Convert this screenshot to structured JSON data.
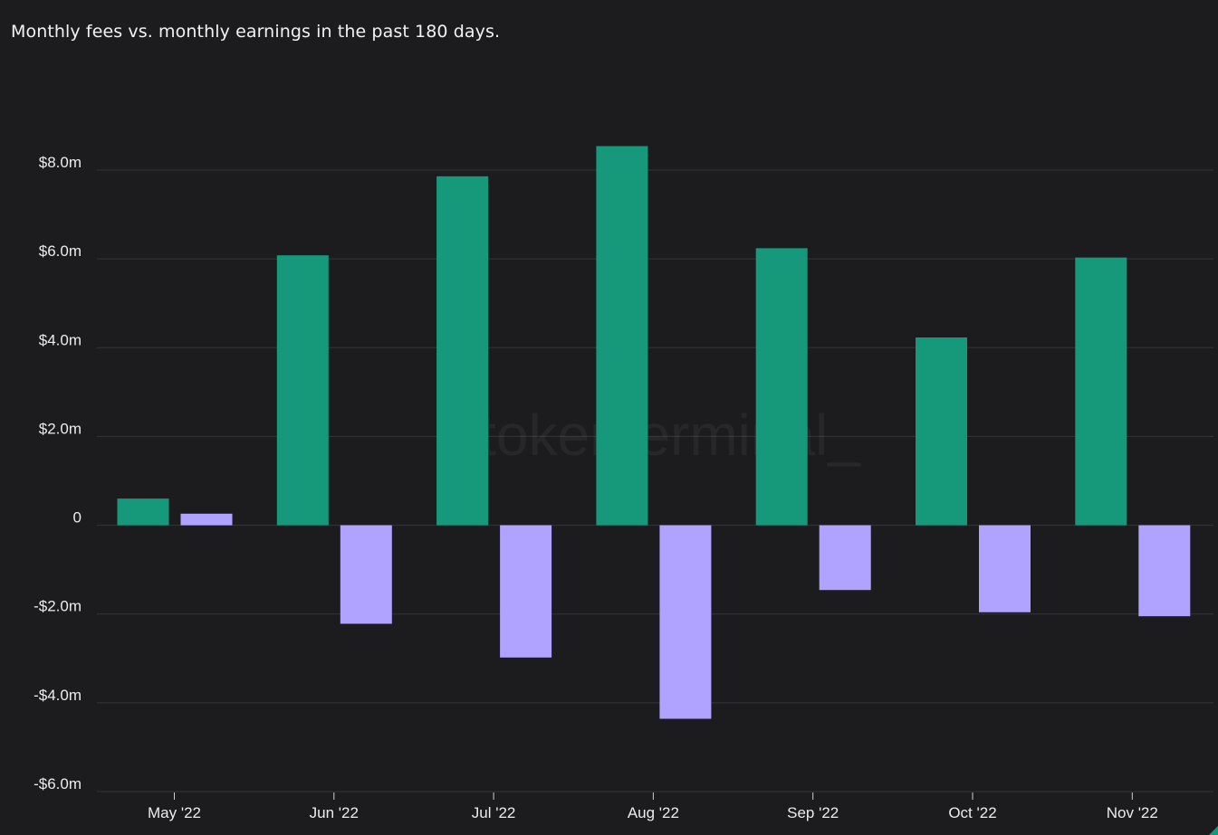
{
  "title": "Monthly fees vs. monthly earnings in the past 180 days.",
  "watermark": "tokenterminal_",
  "chart_data": {
    "type": "bar",
    "title": "Monthly fees vs. monthly earnings in the past 180 days.",
    "xlabel": "",
    "ylabel": "",
    "categories": [
      "May '22",
      "Jun '22",
      "Jul '22",
      "Aug '22",
      "Sep '22",
      "Oct '22",
      "Nov '22"
    ],
    "series": [
      {
        "name": "Fees",
        "color": "#16997b",
        "values": [
          0.6,
          6.08,
          7.86,
          8.54,
          6.24,
          4.23,
          6.03
        ]
      },
      {
        "name": "Earnings",
        "color": "#b0a2ff",
        "values": [
          0.26,
          -2.22,
          -2.98,
          -4.36,
          -1.46,
          -1.96,
          -2.05
        ]
      }
    ],
    "ylim": [
      -6.0,
      8.0
    ],
    "yticks": [
      8.0,
      6.0,
      4.0,
      2.0,
      0,
      -2.0,
      -4.0,
      -6.0
    ],
    "ytick_labels": [
      "$8.0m",
      "$6.0m",
      "$4.0m",
      "$2.0m",
      "0",
      "-$2.0m",
      "-$4.0m",
      "-$6.0m"
    ],
    "grid": true,
    "legend": "none"
  },
  "colors": {
    "background": "#1c1c1f",
    "grid": "#35353a",
    "axis_text": "#ececec",
    "accent": "#16997b"
  }
}
